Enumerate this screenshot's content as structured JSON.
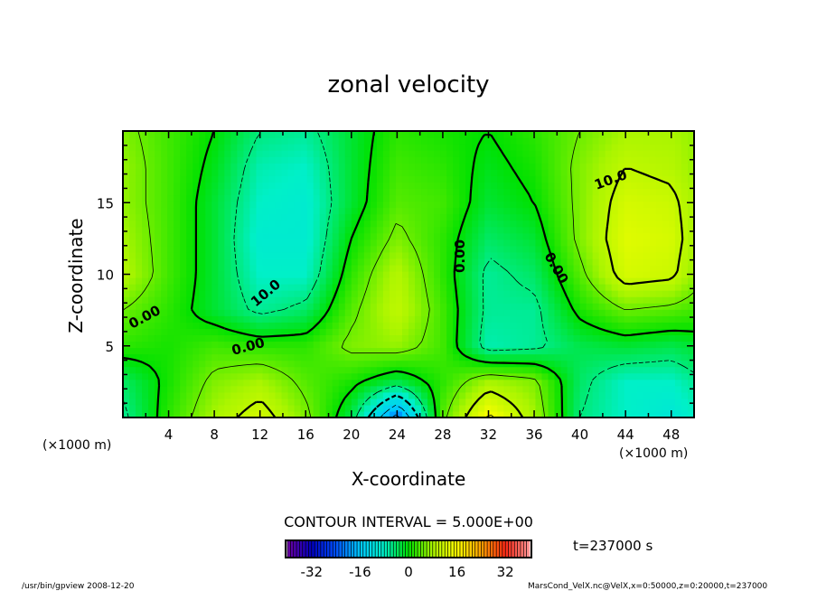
{
  "chart_data": {
    "type": "heatmap",
    "title": "zonal velocity",
    "xlabel": "X-coordinate",
    "ylabel": "Z-coordinate",
    "x_unit_label": "(×1000 m)",
    "y_unit_label": "(×1000 m)",
    "xlim": [
      0,
      50
    ],
    "ylim": [
      0,
      20
    ],
    "x_ticks": [
      4,
      8,
      12,
      16,
      20,
      24,
      28,
      32,
      36,
      40,
      44,
      48
    ],
    "y_ticks": [
      5,
      10,
      15
    ],
    "grid_x": [
      0,
      4,
      8,
      12,
      16,
      20,
      24,
      28,
      32,
      36,
      40,
      44,
      48,
      50
    ],
    "grid_z": [
      0,
      2.5,
      5,
      7.5,
      10,
      12.5,
      15,
      17.5,
      20
    ],
    "values": [
      [
        -6,
        2,
        8,
        12,
        6,
        -3,
        -22,
        4,
        16,
        8,
        -5,
        -8,
        -10,
        -8
      ],
      [
        -4,
        1,
        6,
        8,
        4,
        1,
        -3,
        2,
        8,
        6,
        -4,
        -8,
        -8,
        -6
      ],
      [
        2,
        1,
        3,
        2,
        2,
        6,
        7,
        3,
        -7,
        -6,
        -3,
        -2,
        -3,
        -2
      ],
      [
        5,
        2,
        -2,
        -6,
        -4,
        4,
        10,
        3,
        -6,
        -6,
        1,
        5,
        4,
        3
      ],
      [
        9,
        3,
        -2,
        -8,
        -8,
        2,
        9,
        2,
        -6,
        -4,
        4,
        12,
        11,
        7
      ],
      [
        8,
        3,
        -2,
        -9,
        -9,
        0,
        6,
        2,
        -4,
        -2,
        6,
        13,
        12,
        8
      ],
      [
        7,
        3,
        -2,
        -8,
        -9,
        -2,
        4,
        3,
        -2,
        0,
        6,
        12,
        11,
        8
      ],
      [
        7,
        3,
        -1,
        -7,
        -8,
        -2,
        3,
        2,
        -1,
        1,
        6,
        10,
        9,
        7
      ],
      [
        6,
        3,
        0,
        -5,
        -6,
        -2,
        2,
        1,
        0,
        2,
        5,
        8,
        8,
        7
      ]
    ],
    "contour_interval_text": "CONTOUR INTERVAL = 5.000E+00",
    "contour_interval": 5,
    "contour_labels": [
      "0.00",
      "10.0",
      "0.00",
      "0.00",
      "0.00",
      "10.0"
    ],
    "colorbar": {
      "range": [
        -40,
        40
      ],
      "ticks": [
        "-32",
        "-16",
        "0",
        "16",
        "32"
      ]
    },
    "time_label": "t=237000 s"
  },
  "footer": {
    "left": "/usr/bin/gpview  2008-12-20",
    "right": "MarsCond_VelX.nc@VelX,x=0:50000,z=0:20000,t=237000"
  }
}
